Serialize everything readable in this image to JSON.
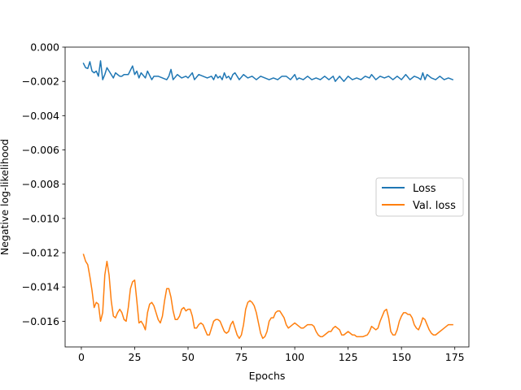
{
  "chart_data": {
    "type": "line",
    "title": "",
    "xlabel": "Epochs",
    "ylabel": "Negative log-likelihood",
    "xlim": [
      -7.6,
      181.6
    ],
    "ylim": [
      -0.0175,
      0.0
    ],
    "x_ticks": [
      0,
      25,
      50,
      75,
      100,
      125,
      150,
      175
    ],
    "y_ticks": [
      0.0,
      -0.002,
      -0.004,
      -0.006,
      -0.008,
      -0.01,
      -0.012,
      -0.014,
      -0.016
    ],
    "x_tick_labels": [
      "0",
      "25",
      "50",
      "75",
      "100",
      "125",
      "150",
      "175"
    ],
    "y_tick_labels": [
      "0.000",
      "−0.002",
      "−0.004",
      "−0.006",
      "−0.008",
      "−0.010",
      "−0.012",
      "−0.014",
      "−0.016"
    ],
    "grid": false,
    "legend_position": "center-right",
    "series": [
      {
        "name": "Loss",
        "color": "#1f77b4",
        "points": [
          [
            1,
            -0.00095
          ],
          [
            2,
            -0.0012
          ],
          [
            3,
            -0.00125
          ],
          [
            4,
            -0.00085
          ],
          [
            5,
            -0.0014
          ],
          [
            6,
            -0.0015
          ],
          [
            7,
            -0.0014
          ],
          [
            8,
            -0.0017
          ],
          [
            9,
            -0.0008
          ],
          [
            10,
            -0.0019
          ],
          [
            11,
            -0.0016
          ],
          [
            12,
            -0.0012
          ],
          [
            13,
            -0.0014
          ],
          [
            14,
            -0.0016
          ],
          [
            15,
            -0.0018
          ],
          [
            16,
            -0.0015
          ],
          [
            17,
            -0.0016
          ],
          [
            18,
            -0.0017
          ],
          [
            19,
            -0.0017
          ],
          [
            20,
            -0.0016
          ],
          [
            22,
            -0.0016
          ],
          [
            24,
            -0.0011
          ],
          [
            25,
            -0.0016
          ],
          [
            26,
            -0.0014
          ],
          [
            27,
            -0.0018
          ],
          [
            28,
            -0.0015
          ],
          [
            30,
            -0.0018
          ],
          [
            31,
            -0.0014
          ],
          [
            33,
            -0.0019
          ],
          [
            34,
            -0.0017
          ],
          [
            36,
            -0.0017
          ],
          [
            38,
            -0.0018
          ],
          [
            40,
            -0.0019
          ],
          [
            41,
            -0.0017
          ],
          [
            42,
            -0.0013
          ],
          [
            43,
            -0.0019
          ],
          [
            45,
            -0.0016
          ],
          [
            47,
            -0.0018
          ],
          [
            49,
            -0.0017
          ],
          [
            50,
            -0.0018
          ],
          [
            52,
            -0.0015
          ],
          [
            53,
            -0.0019
          ],
          [
            55,
            -0.0016
          ],
          [
            57,
            -0.0017
          ],
          [
            59,
            -0.0018
          ],
          [
            61,
            -0.0017
          ],
          [
            62,
            -0.0019
          ],
          [
            63,
            -0.0016
          ],
          [
            64,
            -0.0018
          ],
          [
            65,
            -0.0017
          ],
          [
            66,
            -0.0019
          ],
          [
            67,
            -0.0015
          ],
          [
            68,
            -0.0018
          ],
          [
            69,
            -0.0017
          ],
          [
            70,
            -0.0019
          ],
          [
            71,
            -0.0016
          ],
          [
            72,
            -0.0015
          ],
          [
            74,
            -0.0019
          ],
          [
            76,
            -0.0016
          ],
          [
            78,
            -0.0018
          ],
          [
            80,
            -0.0017
          ],
          [
            81,
            -0.0018
          ],
          [
            82,
            -0.0019
          ],
          [
            84,
            -0.0017
          ],
          [
            86,
            -0.0018
          ],
          [
            88,
            -0.0019
          ],
          [
            90,
            -0.0018
          ],
          [
            92,
            -0.0019
          ],
          [
            94,
            -0.0017
          ],
          [
            96,
            -0.0017
          ],
          [
            98,
            -0.0019
          ],
          [
            100,
            -0.0016
          ],
          [
            101,
            -0.0019
          ],
          [
            102,
            -0.0018
          ],
          [
            104,
            -0.0019
          ],
          [
            106,
            -0.0017
          ],
          [
            108,
            -0.0019
          ],
          [
            110,
            -0.0018
          ],
          [
            112,
            -0.0019
          ],
          [
            114,
            -0.0017
          ],
          [
            116,
            -0.0019
          ],
          [
            118,
            -0.0017
          ],
          [
            119,
            -0.002
          ],
          [
            121,
            -0.0017
          ],
          [
            123,
            -0.002
          ],
          [
            125,
            -0.0017
          ],
          [
            127,
            -0.0019
          ],
          [
            129,
            -0.0018
          ],
          [
            131,
            -0.0019
          ],
          [
            133,
            -0.0017
          ],
          [
            135,
            -0.0018
          ],
          [
            136,
            -0.0016
          ],
          [
            138,
            -0.0019
          ],
          [
            140,
            -0.0017
          ],
          [
            142,
            -0.0018
          ],
          [
            144,
            -0.0017
          ],
          [
            146,
            -0.0019
          ],
          [
            147,
            -0.0018
          ],
          [
            148,
            -0.0017
          ],
          [
            150,
            -0.0019
          ],
          [
            152,
            -0.0016
          ],
          [
            154,
            -0.0019
          ],
          [
            156,
            -0.0017
          ],
          [
            158,
            -0.0018
          ],
          [
            159,
            -0.0019
          ],
          [
            160,
            -0.0015
          ],
          [
            161,
            -0.0019
          ],
          [
            162,
            -0.0016
          ],
          [
            164,
            -0.0018
          ],
          [
            166,
            -0.0019
          ],
          [
            168,
            -0.0017
          ],
          [
            170,
            -0.0019
          ],
          [
            172,
            -0.0018
          ],
          [
            174,
            -0.0019
          ]
        ]
      },
      {
        "name": "Val. loss",
        "color": "#ff7f0e",
        "points": [
          [
            1,
            -0.0121
          ],
          [
            2,
            -0.0125
          ],
          [
            3,
            -0.0127
          ],
          [
            4,
            -0.0134
          ],
          [
            5,
            -0.0142
          ],
          [
            6,
            -0.0152
          ],
          [
            7,
            -0.0149
          ],
          [
            8,
            -0.015
          ],
          [
            9,
            -0.016
          ],
          [
            10,
            -0.0155
          ],
          [
            11,
            -0.0133
          ],
          [
            12,
            -0.0125
          ],
          [
            13,
            -0.0133
          ],
          [
            14,
            -0.0148
          ],
          [
            15,
            -0.0157
          ],
          [
            16,
            -0.0158
          ],
          [
            17,
            -0.0155
          ],
          [
            18,
            -0.0153
          ],
          [
            19,
            -0.0155
          ],
          [
            20,
            -0.0159
          ],
          [
            21,
            -0.016
          ],
          [
            22,
            -0.0152
          ],
          [
            23,
            -0.0141
          ],
          [
            24,
            -0.0137
          ],
          [
            25,
            -0.0136
          ],
          [
            26,
            -0.0148
          ],
          [
            27,
            -0.0161
          ],
          [
            28,
            -0.016
          ],
          [
            29,
            -0.0162
          ],
          [
            30,
            -0.0165
          ],
          [
            31,
            -0.0155
          ],
          [
            32,
            -0.015
          ],
          [
            33,
            -0.0149
          ],
          [
            34,
            -0.0151
          ],
          [
            35,
            -0.0155
          ],
          [
            36,
            -0.0159
          ],
          [
            37,
            -0.0161
          ],
          [
            38,
            -0.0157
          ],
          [
            39,
            -0.0148
          ],
          [
            40,
            -0.0141
          ],
          [
            41,
            -0.0141
          ],
          [
            42,
            -0.0146
          ],
          [
            43,
            -0.0154
          ],
          [
            44,
            -0.0159
          ],
          [
            45,
            -0.0159
          ],
          [
            46,
            -0.0157
          ],
          [
            47,
            -0.0153
          ],
          [
            48,
            -0.0152
          ],
          [
            49,
            -0.0154
          ],
          [
            50,
            -0.0153
          ],
          [
            51,
            -0.0153
          ],
          [
            52,
            -0.0157
          ],
          [
            53,
            -0.0164
          ],
          [
            54,
            -0.0164
          ],
          [
            55,
            -0.0162
          ],
          [
            56,
            -0.0161
          ],
          [
            57,
            -0.0162
          ],
          [
            58,
            -0.0165
          ],
          [
            59,
            -0.0168
          ],
          [
            60,
            -0.0168
          ],
          [
            61,
            -0.0164
          ],
          [
            62,
            -0.016
          ],
          [
            63,
            -0.0159
          ],
          [
            64,
            -0.0159
          ],
          [
            65,
            -0.016
          ],
          [
            66,
            -0.0163
          ],
          [
            67,
            -0.0166
          ],
          [
            68,
            -0.0167
          ],
          [
            69,
            -0.0166
          ],
          [
            70,
            -0.0162
          ],
          [
            71,
            -0.016
          ],
          [
            72,
            -0.0164
          ],
          [
            73,
            -0.0168
          ],
          [
            74,
            -0.017
          ],
          [
            75,
            -0.0168
          ],
          [
            76,
            -0.0162
          ],
          [
            77,
            -0.0153
          ],
          [
            78,
            -0.0149
          ],
          [
            79,
            -0.0148
          ],
          [
            80,
            -0.0149
          ],
          [
            81,
            -0.0151
          ],
          [
            82,
            -0.0155
          ],
          [
            83,
            -0.0161
          ],
          [
            84,
            -0.0167
          ],
          [
            85,
            -0.017
          ],
          [
            86,
            -0.0169
          ],
          [
            87,
            -0.0166
          ],
          [
            88,
            -0.016
          ],
          [
            89,
            -0.0158
          ],
          [
            90,
            -0.0158
          ],
          [
            91,
            -0.0155
          ],
          [
            92,
            -0.0154
          ],
          [
            93,
            -0.0154
          ],
          [
            94,
            -0.0156
          ],
          [
            95,
            -0.0158
          ],
          [
            96,
            -0.0162
          ],
          [
            97,
            -0.0164
          ],
          [
            98,
            -0.0163
          ],
          [
            99,
            -0.0162
          ],
          [
            100,
            -0.0161
          ],
          [
            101,
            -0.0162
          ],
          [
            102,
            -0.0163
          ],
          [
            103,
            -0.0164
          ],
          [
            104,
            -0.0164
          ],
          [
            105,
            -0.0163
          ],
          [
            106,
            -0.0162
          ],
          [
            107,
            -0.0162
          ],
          [
            108,
            -0.0162
          ],
          [
            109,
            -0.0163
          ],
          [
            110,
            -0.0166
          ],
          [
            111,
            -0.0168
          ],
          [
            112,
            -0.0169
          ],
          [
            113,
            -0.0169
          ],
          [
            114,
            -0.0168
          ],
          [
            115,
            -0.0167
          ],
          [
            116,
            -0.0166
          ],
          [
            117,
            -0.0166
          ],
          [
            118,
            -0.0164
          ],
          [
            119,
            -0.0163
          ],
          [
            120,
            -0.0164
          ],
          [
            121,
            -0.0165
          ],
          [
            122,
            -0.0168
          ],
          [
            123,
            -0.0168
          ],
          [
            124,
            -0.0167
          ],
          [
            125,
            -0.0166
          ],
          [
            126,
            -0.0167
          ],
          [
            127,
            -0.0168
          ],
          [
            128,
            -0.0168
          ],
          [
            129,
            -0.0169
          ],
          [
            130,
            -0.0169
          ],
          [
            132,
            -0.0169
          ],
          [
            134,
            -0.0168
          ],
          [
            135,
            -0.0166
          ],
          [
            136,
            -0.0163
          ],
          [
            137,
            -0.0164
          ],
          [
            138,
            -0.0165
          ],
          [
            139,
            -0.0164
          ],
          [
            140,
            -0.016
          ],
          [
            141,
            -0.0157
          ],
          [
            142,
            -0.0154
          ],
          [
            143,
            -0.0153
          ],
          [
            144,
            -0.0158
          ],
          [
            145,
            -0.0166
          ],
          [
            146,
            -0.0168
          ],
          [
            147,
            -0.0168
          ],
          [
            148,
            -0.0165
          ],
          [
            149,
            -0.016
          ],
          [
            150,
            -0.0157
          ],
          [
            151,
            -0.0155
          ],
          [
            152,
            -0.0155
          ],
          [
            153,
            -0.0156
          ],
          [
            154,
            -0.0156
          ],
          [
            155,
            -0.0158
          ],
          [
            156,
            -0.0162
          ],
          [
            157,
            -0.0164
          ],
          [
            158,
            -0.0165
          ],
          [
            159,
            -0.0162
          ],
          [
            160,
            -0.0158
          ],
          [
            161,
            -0.0159
          ],
          [
            162,
            -0.0162
          ],
          [
            163,
            -0.0165
          ],
          [
            164,
            -0.0167
          ],
          [
            165,
            -0.0168
          ],
          [
            166,
            -0.0168
          ],
          [
            167,
            -0.0167
          ],
          [
            168,
            -0.0166
          ],
          [
            169,
            -0.0165
          ],
          [
            170,
            -0.0164
          ],
          [
            171,
            -0.0163
          ],
          [
            172,
            -0.0162
          ],
          [
            173,
            -0.0162
          ],
          [
            174,
            -0.0162
          ]
        ]
      }
    ]
  }
}
